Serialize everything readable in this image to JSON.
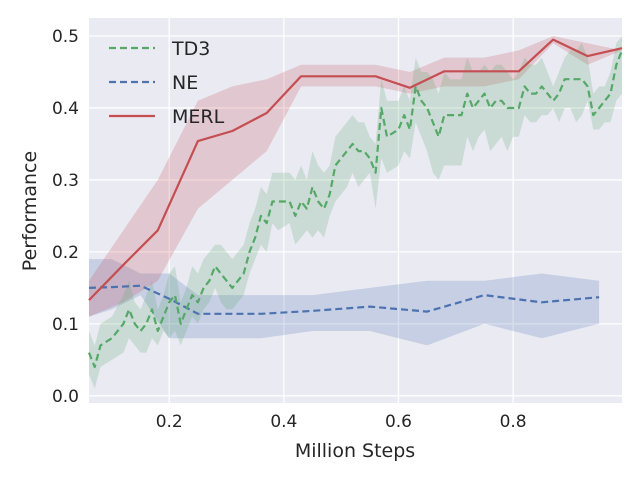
{
  "chart_data": {
    "type": "line",
    "title": "",
    "xlabel": "Million Steps",
    "ylabel": "Performance",
    "xlim": [
      0.06,
      0.99
    ],
    "ylim": [
      -0.01,
      0.525
    ],
    "xticks": [
      0.2,
      0.4,
      0.6,
      0.8
    ],
    "xtick_labels": [
      "0.2",
      "0.4",
      "0.6",
      "0.8"
    ],
    "yticks": [
      0.0,
      0.1,
      0.2,
      0.3,
      0.4,
      0.5
    ],
    "ytick_labels": [
      "0.0",
      "0.1",
      "0.2",
      "0.3",
      "0.4",
      "0.5"
    ],
    "grid": true,
    "legend_position": "top-left",
    "series": [
      {
        "name": "TD3",
        "style": "dashed",
        "color": "#55a868",
        "x": [
          0.06,
          0.07,
          0.08,
          0.1,
          0.12,
          0.13,
          0.14,
          0.15,
          0.16,
          0.17,
          0.18,
          0.19,
          0.2,
          0.21,
          0.22,
          0.23,
          0.24,
          0.25,
          0.26,
          0.27,
          0.28,
          0.29,
          0.3,
          0.31,
          0.32,
          0.33,
          0.34,
          0.35,
          0.36,
          0.37,
          0.38,
          0.39,
          0.41,
          0.42,
          0.43,
          0.44,
          0.45,
          0.46,
          0.47,
          0.48,
          0.49,
          0.51,
          0.52,
          0.53,
          0.54,
          0.55,
          0.56,
          0.57,
          0.58,
          0.6,
          0.61,
          0.62,
          0.63,
          0.64,
          0.65,
          0.66,
          0.67,
          0.68,
          0.69,
          0.71,
          0.72,
          0.73,
          0.74,
          0.75,
          0.76,
          0.77,
          0.78,
          0.79,
          0.8,
          0.81,
          0.82,
          0.83,
          0.84,
          0.85,
          0.86,
          0.87,
          0.88,
          0.89,
          0.9,
          0.91,
          0.92,
          0.93,
          0.94,
          0.95,
          0.96,
          0.97,
          0.98,
          0.99
        ],
        "lower": [
          0.03,
          0.01,
          0.04,
          0.05,
          0.06,
          0.08,
          0.07,
          0.06,
          0.06,
          0.08,
          0.07,
          0.09,
          0.08,
          0.09,
          0.07,
          0.09,
          0.11,
          0.1,
          0.12,
          0.13,
          0.15,
          0.13,
          0.12,
          0.12,
          0.13,
          0.14,
          0.17,
          0.19,
          0.21,
          0.2,
          0.24,
          0.23,
          0.24,
          0.21,
          0.22,
          0.23,
          0.22,
          0.23,
          0.22,
          0.25,
          0.27,
          0.29,
          0.31,
          0.29,
          0.3,
          0.31,
          0.26,
          0.33,
          0.31,
          0.32,
          0.34,
          0.33,
          0.38,
          0.36,
          0.34,
          0.31,
          0.3,
          0.32,
          0.32,
          0.32,
          0.36,
          0.34,
          0.36,
          0.37,
          0.34,
          0.35,
          0.36,
          0.34,
          0.36,
          0.36,
          0.39,
          0.38,
          0.38,
          0.39,
          0.39,
          0.4,
          0.38,
          0.4,
          0.4,
          0.38,
          0.39,
          0.41,
          0.37,
          0.37,
          0.38,
          0.38,
          0.41,
          0.42
        ],
        "mean": [
          0.06,
          0.04,
          0.07,
          0.08,
          0.1,
          0.12,
          0.1,
          0.09,
          0.1,
          0.12,
          0.09,
          0.11,
          0.13,
          0.14,
          0.1,
          0.12,
          0.14,
          0.13,
          0.15,
          0.16,
          0.18,
          0.17,
          0.16,
          0.15,
          0.16,
          0.17,
          0.2,
          0.22,
          0.25,
          0.24,
          0.27,
          0.27,
          0.27,
          0.25,
          0.27,
          0.26,
          0.29,
          0.27,
          0.26,
          0.28,
          0.32,
          0.34,
          0.35,
          0.34,
          0.34,
          0.33,
          0.31,
          0.4,
          0.36,
          0.37,
          0.39,
          0.37,
          0.43,
          0.41,
          0.4,
          0.38,
          0.36,
          0.39,
          0.39,
          0.39,
          0.42,
          0.4,
          0.41,
          0.42,
          0.4,
          0.41,
          0.41,
          0.4,
          0.4,
          0.4,
          0.43,
          0.42,
          0.42,
          0.43,
          0.42,
          0.41,
          0.42,
          0.44,
          0.44,
          0.44,
          0.44,
          0.43,
          0.39,
          0.4,
          0.41,
          0.42,
          0.46,
          0.48
        ],
        "upper": [
          0.09,
          0.07,
          0.1,
          0.11,
          0.14,
          0.16,
          0.13,
          0.12,
          0.14,
          0.16,
          0.12,
          0.14,
          0.17,
          0.18,
          0.13,
          0.15,
          0.18,
          0.17,
          0.19,
          0.2,
          0.21,
          0.21,
          0.2,
          0.19,
          0.2,
          0.21,
          0.24,
          0.26,
          0.29,
          0.28,
          0.31,
          0.31,
          0.31,
          0.3,
          0.32,
          0.3,
          0.34,
          0.32,
          0.31,
          0.32,
          0.36,
          0.38,
          0.39,
          0.38,
          0.38,
          0.36,
          0.35,
          0.44,
          0.41,
          0.41,
          0.43,
          0.41,
          0.47,
          0.45,
          0.45,
          0.44,
          0.42,
          0.45,
          0.44,
          0.44,
          0.47,
          0.45,
          0.45,
          0.46,
          0.45,
          0.46,
          0.46,
          0.45,
          0.44,
          0.45,
          0.47,
          0.46,
          0.46,
          0.47,
          0.45,
          0.43,
          0.45,
          0.47,
          0.48,
          0.48,
          0.49,
          0.47,
          0.42,
          0.43,
          0.43,
          0.45,
          0.49,
          0.5
        ]
      },
      {
        "name": "NE",
        "style": "dashed",
        "color": "#4c72b0",
        "x": [
          0.06,
          0.1,
          0.15,
          0.2,
          0.25,
          0.31,
          0.36,
          0.45,
          0.55,
          0.65,
          0.75,
          0.85,
          0.95
        ],
        "lower": [
          0.11,
          0.12,
          0.14,
          0.08,
          0.08,
          0.08,
          0.08,
          0.09,
          0.09,
          0.07,
          0.1,
          0.08,
          0.1
        ],
        "mean": [
          0.15,
          0.151,
          0.153,
          0.135,
          0.114,
          0.114,
          0.114,
          0.118,
          0.124,
          0.117,
          0.14,
          0.13,
          0.137
        ],
        "upper": [
          0.19,
          0.19,
          0.17,
          0.17,
          0.14,
          0.14,
          0.14,
          0.14,
          0.15,
          0.16,
          0.16,
          0.17,
          0.16
        ]
      },
      {
        "name": "MERL",
        "style": "solid",
        "color": "#c44e52",
        "x": [
          0.06,
          0.12,
          0.18,
          0.25,
          0.31,
          0.37,
          0.43,
          0.56,
          0.62,
          0.68,
          0.75,
          0.81,
          0.87,
          0.93,
          0.99
        ],
        "lower": [
          0.11,
          0.13,
          0.16,
          0.26,
          0.3,
          0.34,
          0.43,
          0.43,
          0.42,
          0.43,
          0.43,
          0.44,
          0.49,
          0.46,
          0.48
        ],
        "mean": [
          0.133,
          0.182,
          0.23,
          0.354,
          0.368,
          0.393,
          0.444,
          0.444,
          0.428,
          0.451,
          0.451,
          0.451,
          0.495,
          0.472,
          0.483
        ],
        "upper": [
          0.16,
          0.23,
          0.3,
          0.41,
          0.43,
          0.44,
          0.46,
          0.46,
          0.45,
          0.47,
          0.47,
          0.48,
          0.5,
          0.49,
          0.48
        ]
      }
    ]
  }
}
